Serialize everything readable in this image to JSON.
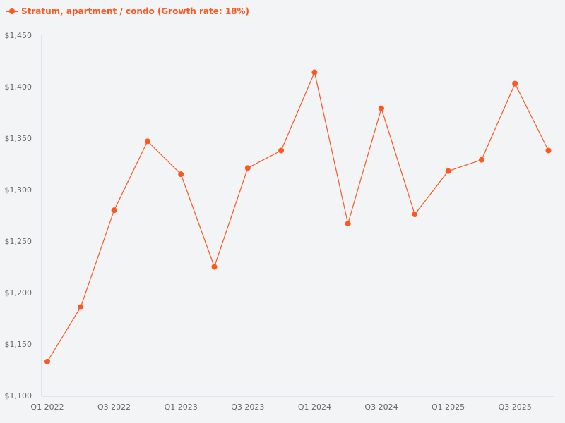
{
  "legend": {
    "label": "Stratum, apartment / condo (Growth rate: 18%)"
  },
  "colors": {
    "series": "#ff5722",
    "axis": "#c9d3e6",
    "tick_text": "#666666",
    "background": "#f3f4f6"
  },
  "chart_data": {
    "type": "line",
    "title": "",
    "xlabel": "",
    "ylabel": "",
    "ylim": [
      1100,
      1450
    ],
    "y_ticks": [
      "$1,100",
      "$1,150",
      "$1,200",
      "$1,250",
      "$1,300",
      "$1,350",
      "$1,400",
      "$1,450"
    ],
    "x_tick_labels": [
      "Q1 2022",
      "Q3 2022",
      "Q1 2023",
      "Q3 2023",
      "Q1 2024",
      "Q3 2024",
      "Q1 2025",
      "Q3 2025"
    ],
    "categories": [
      "Q1 2022",
      "Q2 2022",
      "Q3 2022",
      "Q4 2022",
      "Q1 2023",
      "Q2 2023",
      "Q3 2023",
      "Q4 2023",
      "Q1 2024",
      "Q2 2024",
      "Q3 2024",
      "Q4 2024",
      "Q1 2025",
      "Q2 2025",
      "Q3 2025",
      "Q4 2025"
    ],
    "series": [
      {
        "name": "Stratum, apartment / condo (Growth rate: 18%)",
        "values": [
          1133,
          1186,
          1280,
          1347,
          1315,
          1225,
          1321,
          1338,
          1414,
          1267,
          1379,
          1276,
          1318,
          1329,
          1403,
          1338
        ]
      }
    ],
    "grid": false,
    "legend_position": "top-left"
  }
}
